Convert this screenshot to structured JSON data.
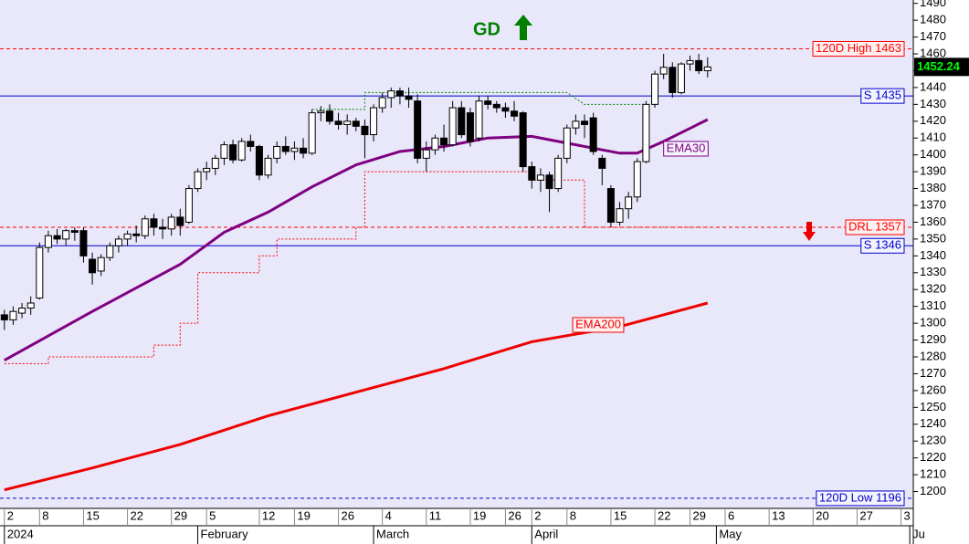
{
  "chart_data": {
    "type": "candlestick",
    "annotation": "GD",
    "x": [
      0,
      1,
      2,
      3,
      4,
      5,
      6,
      7,
      8,
      9,
      10,
      11,
      12,
      13,
      14,
      15,
      16,
      17,
      18,
      19,
      20,
      21,
      22,
      23,
      24,
      25,
      26,
      27,
      28,
      29,
      30,
      31,
      32,
      33,
      34,
      35,
      36,
      37,
      38,
      39,
      40,
      41,
      42,
      43,
      44,
      45,
      46,
      47,
      48,
      49,
      50,
      51,
      52,
      53,
      54,
      55,
      56,
      57,
      58,
      59,
      60,
      61,
      62,
      63,
      64,
      65,
      66,
      67,
      68,
      69,
      70,
      71,
      72,
      73,
      74,
      75,
      76,
      77,
      78,
      79,
      80
    ],
    "open": [
      1305,
      1302,
      1306,
      1309,
      1315,
      1345,
      1352,
      1350,
      1355,
      1355,
      1338,
      1331,
      1339,
      1346,
      1350,
      1353,
      1352,
      1362,
      1357,
      1356,
      1363,
      1360,
      1380,
      1390,
      1392,
      1398,
      1406,
      1397,
      1408,
      1405,
      1388,
      1398,
      1405,
      1402,
      1404,
      1401,
      1425,
      1426,
      1420,
      1418,
      1420,
      1417,
      1412,
      1428,
      1434,
      1438,
      1435,
      1432,
      1398,
      1403,
      1410,
      1406,
      1428,
      1425,
      1410,
      1432,
      1430,
      1428,
      1426,
      1425,
      1393,
      1385,
      1388,
      1380,
      1398,
      1416,
      1420,
      1422,
      1398,
      1380,
      1360,
      1368,
      1375,
      1396,
      1430,
      1448,
      1452,
      1437,
      1454,
      1456,
      1450
    ],
    "high": [
      1308,
      1310,
      1312,
      1316,
      1348,
      1355,
      1356,
      1356,
      1357,
      1357,
      1342,
      1341,
      1348,
      1352,
      1355,
      1358,
      1364,
      1365,
      1362,
      1365,
      1368,
      1382,
      1392,
      1396,
      1400,
      1408,
      1409,
      1410,
      1412,
      1406,
      1400,
      1408,
      1411,
      1408,
      1410,
      1427,
      1429,
      1430,
      1425,
      1424,
      1422,
      1421,
      1430,
      1437,
      1440,
      1440,
      1440,
      1436,
      1408,
      1412,
      1418,
      1432,
      1432,
      1428,
      1435,
      1435,
      1432,
      1431,
      1432,
      1426,
      1396,
      1392,
      1390,
      1400,
      1418,
      1424,
      1424,
      1425,
      1400,
      1382,
      1372,
      1378,
      1398,
      1432,
      1450,
      1460,
      1455,
      1455,
      1459,
      1460,
      1458
    ],
    "low": [
      1296,
      1299,
      1303,
      1305,
      1314,
      1342,
      1347,
      1346,
      1349,
      1336,
      1323,
      1328,
      1337,
      1342,
      1346,
      1348,
      1350,
      1352,
      1350,
      1352,
      1352,
      1359,
      1378,
      1385,
      1388,
      1394,
      1395,
      1396,
      1402,
      1385,
      1386,
      1395,
      1400,
      1397,
      1398,
      1400,
      1420,
      1418,
      1415,
      1412,
      1414,
      1398,
      1408,
      1425,
      1428,
      1430,
      1428,
      1395,
      1390,
      1400,
      1402,
      1405,
      1410,
      1405,
      1408,
      1427,
      1425,
      1422,
      1420,
      1390,
      1380,
      1378,
      1366,
      1378,
      1395,
      1412,
      1410,
      1400,
      1382,
      1357,
      1358,
      1362,
      1372,
      1395,
      1428,
      1445,
      1434,
      1436,
      1450,
      1448,
      1446
    ],
    "close": [
      1302,
      1307,
      1309,
      1312,
      1345,
      1352,
      1350,
      1355,
      1354,
      1340,
      1330,
      1339,
      1346,
      1350,
      1353,
      1352,
      1362,
      1357,
      1356,
      1363,
      1358,
      1380,
      1390,
      1392,
      1398,
      1406,
      1397,
      1408,
      1405,
      1388,
      1398,
      1405,
      1402,
      1404,
      1401,
      1425,
      1426,
      1420,
      1418,
      1420,
      1417,
      1412,
      1428,
      1434,
      1438,
      1435,
      1433,
      1398,
      1403,
      1410,
      1406,
      1428,
      1412,
      1408,
      1432,
      1430,
      1428,
      1426,
      1423,
      1393,
      1385,
      1388,
      1380,
      1398,
      1416,
      1420,
      1418,
      1402,
      1392,
      1360,
      1368,
      1375,
      1396,
      1430,
      1448,
      1452,
      1437,
      1454,
      1456,
      1450,
      1452.24
    ],
    "last_price": 1452.24,
    "lines": [
      {
        "name": "EMA30",
        "color": "#800080",
        "width": 3,
        "style": "solid",
        "x": [
          0,
          10,
          20,
          25,
          30,
          35,
          40,
          45,
          50,
          55,
          60,
          65,
          70,
          72,
          75,
          80
        ],
        "values": [
          1278,
          1307,
          1335,
          1354,
          1366,
          1381,
          1394,
          1402,
          1405,
          1410,
          1411,
          1406,
          1401,
          1401,
          1408,
          1421
        ]
      },
      {
        "name": "EMA200",
        "color": "#ee0000",
        "width": 3,
        "style": "solid",
        "x": [
          0,
          10,
          20,
          30,
          40,
          50,
          60,
          70,
          80
        ],
        "values": [
          1201,
          1214,
          1228,
          1245,
          1259,
          1273,
          1289,
          1298,
          1312
        ]
      },
      {
        "color": "#ff0000",
        "width": 1,
        "style": "dotted",
        "x": [
          0,
          5,
          5,
          17,
          17,
          20,
          20,
          22,
          22,
          29,
          29,
          31,
          31,
          40,
          40,
          41,
          41,
          60,
          60,
          66,
          66,
          80
        ],
        "values": [
          1276,
          1276,
          1280,
          1280,
          1287,
          1287,
          1300,
          1300,
          1330,
          1330,
          1340,
          1340,
          1350,
          1350,
          1357,
          1357,
          1390,
          1390,
          1385,
          1385,
          1357,
          1357
        ]
      },
      {
        "color": "#008000",
        "width": 1,
        "style": "dotted",
        "x": [
          35,
          41,
          41,
          64,
          66,
          73
        ],
        "values": [
          1427,
          1427,
          1437,
          1437,
          1430,
          1430
        ]
      }
    ],
    "levels": [
      {
        "label": "120D High 1463",
        "value": 1463,
        "color": "#ff0000",
        "style": "dashed"
      },
      {
        "label": "S 1435",
        "value": 1435,
        "color": "#0000cc",
        "style": "solid"
      },
      {
        "label": "DRL 1357",
        "value": 1357,
        "color": "#ff0000",
        "style": "dashed"
      },
      {
        "label": "S 1346",
        "value": 1346,
        "color": "#0000cc",
        "style": "solid"
      },
      {
        "label": "120D Low 1196",
        "value": 1196,
        "color": "#0000cc",
        "style": "dashed"
      }
    ],
    "ylim": [
      1190,
      1492
    ],
    "yticks": [
      1200,
      1210,
      1220,
      1230,
      1240,
      1250,
      1260,
      1270,
      1280,
      1290,
      1300,
      1310,
      1320,
      1330,
      1340,
      1350,
      1360,
      1370,
      1380,
      1390,
      1400,
      1410,
      1420,
      1430,
      1440,
      1450,
      1460,
      1470,
      1480,
      1490
    ],
    "xlim": [
      -0.5,
      103.4
    ],
    "xticks": [
      {
        "value": 0,
        "label": "2"
      },
      {
        "value": 4,
        "label": "8"
      },
      {
        "value": 9,
        "label": "15"
      },
      {
        "value": 14,
        "label": "22"
      },
      {
        "value": 19,
        "label": "29"
      },
      {
        "value": 23,
        "label": "5"
      },
      {
        "value": 29,
        "label": "12"
      },
      {
        "value": 33,
        "label": "19"
      },
      {
        "value": 38,
        "label": "26"
      },
      {
        "value": 43,
        "label": "4"
      },
      {
        "value": 48,
        "label": "11"
      },
      {
        "value": 53,
        "label": "19"
      },
      {
        "value": 57,
        "label": "26"
      },
      {
        "value": 60,
        "label": "2"
      },
      {
        "value": 64,
        "label": "8"
      },
      {
        "value": 69,
        "label": "15"
      },
      {
        "value": 74,
        "label": "22"
      },
      {
        "value": 78,
        "label": "29"
      },
      {
        "value": 82,
        "label": "6"
      },
      {
        "value": 87,
        "label": "13"
      },
      {
        "value": 92,
        "label": "20"
      },
      {
        "value": 97,
        "label": "27"
      },
      {
        "value": 102,
        "label": "3"
      }
    ],
    "months": [
      {
        "value": 0,
        "label": "2024"
      },
      {
        "value": 22,
        "label": "February"
      },
      {
        "value": 42,
        "label": "March"
      },
      {
        "value": 60,
        "label": "April"
      },
      {
        "value": 81,
        "label": "May"
      },
      {
        "value": 103,
        "label": "Ju"
      }
    ]
  }
}
